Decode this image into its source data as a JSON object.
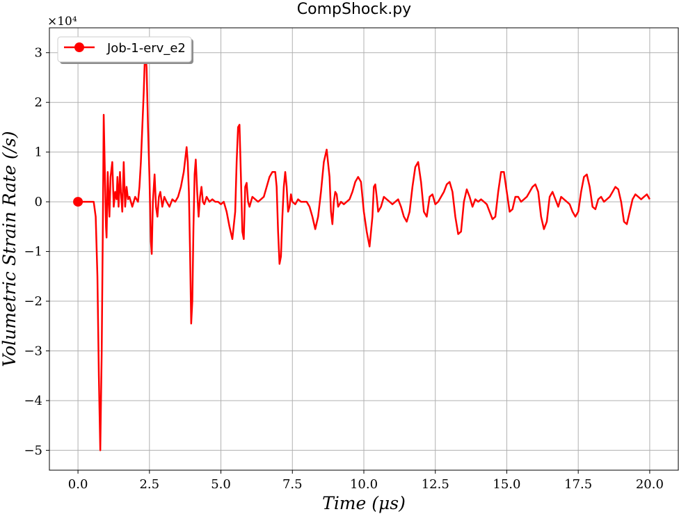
{
  "chart_data": {
    "type": "line",
    "title": "CompShock.py",
    "xlabel": "Time (μs)",
    "ylabel": "Volumetric Strain Rate (/s)",
    "y_multiplier_label": "×10⁴",
    "xlim": [
      -1.0,
      21.0
    ],
    "ylim": [
      -5.4,
      3.5
    ],
    "xticks": [
      0.0,
      2.5,
      5.0,
      7.5,
      10.0,
      12.5,
      15.0,
      17.5,
      20.0
    ],
    "xtick_labels": [
      "0.0",
      "2.5",
      "5.0",
      "7.5",
      "10.0",
      "12.5",
      "15.0",
      "17.5",
      "20.0"
    ],
    "yticks": [
      -5,
      -4,
      -3,
      -2,
      -1,
      0,
      1,
      2,
      3
    ],
    "ytick_labels": [
      "−5",
      "−4",
      "−3",
      "−2",
      "−1",
      "0",
      "1",
      "2",
      "3"
    ],
    "grid": true,
    "legend": {
      "position": "upper-left"
    },
    "series": [
      {
        "name": "Job-1-erv_e2",
        "color": "#ff0000",
        "marker_at_start": true,
        "points": [
          [
            0.0,
            0
          ],
          [
            0.3,
            0
          ],
          [
            0.55,
            0
          ],
          [
            0.62,
            -0.3
          ],
          [
            0.68,
            -1.5
          ],
          [
            0.73,
            -3.5
          ],
          [
            0.78,
            -5.0
          ],
          [
            0.83,
            -3.0
          ],
          [
            0.87,
            -0.5
          ],
          [
            0.9,
            1.75
          ],
          [
            0.94,
            0.6
          ],
          [
            0.98,
            -0.5
          ],
          [
            1.0,
            -0.72
          ],
          [
            1.04,
            0.6
          ],
          [
            1.07,
            0.1
          ],
          [
            1.1,
            -0.3
          ],
          [
            1.14,
            0.5
          ],
          [
            1.2,
            0.8
          ],
          [
            1.25,
            -0.1
          ],
          [
            1.3,
            0.2
          ],
          [
            1.35,
            0.05
          ],
          [
            1.38,
            0.5
          ],
          [
            1.42,
            -0.1
          ],
          [
            1.47,
            0.6
          ],
          [
            1.5,
            0.2
          ],
          [
            1.55,
            -0.2
          ],
          [
            1.6,
            0.8
          ],
          [
            1.65,
            -0.1
          ],
          [
            1.7,
            0.3
          ],
          [
            1.75,
            0.05
          ],
          [
            1.8,
            0.1
          ],
          [
            1.9,
            -0.1
          ],
          [
            2.0,
            0.1
          ],
          [
            2.1,
            0.0
          ],
          [
            2.15,
            0.3
          ],
          [
            2.2,
            0.8
          ],
          [
            2.25,
            1.5
          ],
          [
            2.3,
            2.2
          ],
          [
            2.35,
            3.1
          ],
          [
            2.4,
            2.7
          ],
          [
            2.45,
            1.5
          ],
          [
            2.5,
            0.5
          ],
          [
            2.55,
            -0.8
          ],
          [
            2.58,
            -1.05
          ],
          [
            2.62,
            0.0
          ],
          [
            2.68,
            0.55
          ],
          [
            2.73,
            -0.1
          ],
          [
            2.78,
            -0.3
          ],
          [
            2.83,
            0.1
          ],
          [
            2.88,
            0.2
          ],
          [
            2.95,
            -0.1
          ],
          [
            3.02,
            0.1
          ],
          [
            3.1,
            0.0
          ],
          [
            3.2,
            -0.1
          ],
          [
            3.3,
            0.05
          ],
          [
            3.4,
            0.0
          ],
          [
            3.5,
            0.1
          ],
          [
            3.6,
            0.3
          ],
          [
            3.7,
            0.6
          ],
          [
            3.8,
            1.1
          ],
          [
            3.84,
            0.8
          ],
          [
            3.88,
            0.2
          ],
          [
            3.92,
            -1.0
          ],
          [
            3.96,
            -2.45
          ],
          [
            4.0,
            -2.0
          ],
          [
            4.04,
            -0.5
          ],
          [
            4.08,
            0.55
          ],
          [
            4.12,
            0.85
          ],
          [
            4.17,
            0.2
          ],
          [
            4.22,
            -0.3
          ],
          [
            4.27,
            0.1
          ],
          [
            4.32,
            0.3
          ],
          [
            4.37,
            0.0
          ],
          [
            4.42,
            -0.05
          ],
          [
            4.5,
            0.1
          ],
          [
            4.6,
            0.0
          ],
          [
            4.7,
            0.05
          ],
          [
            4.8,
            0.0
          ],
          [
            4.9,
            0.0
          ],
          [
            5.0,
            -0.05
          ],
          [
            5.1,
            0.0
          ],
          [
            5.2,
            -0.2
          ],
          [
            5.3,
            -0.5
          ],
          [
            5.4,
            -0.75
          ],
          [
            5.5,
            -0.2
          ],
          [
            5.55,
            0.8
          ],
          [
            5.6,
            1.5
          ],
          [
            5.65,
            1.55
          ],
          [
            5.7,
            0.5
          ],
          [
            5.75,
            -0.6
          ],
          [
            5.8,
            -0.75
          ],
          [
            5.85,
            0.3
          ],
          [
            5.9,
            0.38
          ],
          [
            5.95,
            0.0
          ],
          [
            6.0,
            -0.1
          ],
          [
            6.1,
            0.1
          ],
          [
            6.2,
            0.05
          ],
          [
            6.3,
            0.0
          ],
          [
            6.4,
            0.05
          ],
          [
            6.5,
            0.1
          ],
          [
            6.6,
            0.3
          ],
          [
            6.7,
            0.5
          ],
          [
            6.8,
            0.6
          ],
          [
            6.9,
            0.6
          ],
          [
            6.95,
            0.3
          ],
          [
            7.0,
            -0.6
          ],
          [
            7.05,
            -1.25
          ],
          [
            7.1,
            -1.1
          ],
          [
            7.15,
            -0.3
          ],
          [
            7.2,
            0.3
          ],
          [
            7.25,
            0.6
          ],
          [
            7.3,
            0.3
          ],
          [
            7.35,
            -0.2
          ],
          [
            7.4,
            -0.1
          ],
          [
            7.45,
            0.15
          ],
          [
            7.5,
            0.0
          ],
          [
            7.6,
            -0.05
          ],
          [
            7.7,
            0.05
          ],
          [
            7.8,
            0.0
          ],
          [
            7.9,
            0.0
          ],
          [
            8.0,
            0.0
          ],
          [
            8.1,
            -0.1
          ],
          [
            8.2,
            -0.3
          ],
          [
            8.3,
            -0.55
          ],
          [
            8.4,
            -0.3
          ],
          [
            8.5,
            0.2
          ],
          [
            8.6,
            0.8
          ],
          [
            8.7,
            1.05
          ],
          [
            8.8,
            0.5
          ],
          [
            8.85,
            -0.2
          ],
          [
            8.9,
            -0.45
          ],
          [
            8.95,
            0.0
          ],
          [
            9.0,
            0.2
          ],
          [
            9.05,
            0.15
          ],
          [
            9.1,
            -0.1
          ],
          [
            9.2,
            0.0
          ],
          [
            9.3,
            -0.05
          ],
          [
            9.4,
            0.0
          ],
          [
            9.5,
            0.05
          ],
          [
            9.6,
            0.2
          ],
          [
            9.7,
            0.4
          ],
          [
            9.8,
            0.5
          ],
          [
            9.9,
            0.4
          ],
          [
            10.0,
            -0.2
          ],
          [
            10.1,
            -0.6
          ],
          [
            10.2,
            -0.9
          ],
          [
            10.3,
            -0.3
          ],
          [
            10.35,
            0.3
          ],
          [
            10.4,
            0.35
          ],
          [
            10.45,
            0.1
          ],
          [
            10.5,
            -0.2
          ],
          [
            10.6,
            -0.1
          ],
          [
            10.7,
            0.1
          ],
          [
            10.8,
            0.05
          ],
          [
            10.9,
            0.0
          ],
          [
            11.0,
            -0.05
          ],
          [
            11.1,
            0.0
          ],
          [
            11.2,
            0.05
          ],
          [
            11.3,
            -0.1
          ],
          [
            11.4,
            -0.3
          ],
          [
            11.5,
            -0.4
          ],
          [
            11.6,
            -0.2
          ],
          [
            11.7,
            0.3
          ],
          [
            11.8,
            0.7
          ],
          [
            11.9,
            0.8
          ],
          [
            12.0,
            0.4
          ],
          [
            12.1,
            -0.2
          ],
          [
            12.2,
            -0.3
          ],
          [
            12.3,
            0.1
          ],
          [
            12.4,
            0.15
          ],
          [
            12.5,
            -0.05
          ],
          [
            12.6,
            0.0
          ],
          [
            12.7,
            0.1
          ],
          [
            12.8,
            0.2
          ],
          [
            12.9,
            0.35
          ],
          [
            13.0,
            0.4
          ],
          [
            13.1,
            0.2
          ],
          [
            13.2,
            -0.3
          ],
          [
            13.3,
            -0.65
          ],
          [
            13.4,
            -0.6
          ],
          [
            13.5,
            0.0
          ],
          [
            13.6,
            0.25
          ],
          [
            13.7,
            0.1
          ],
          [
            13.8,
            -0.1
          ],
          [
            13.9,
            0.05
          ],
          [
            14.0,
            0.0
          ],
          [
            14.1,
            0.05
          ],
          [
            14.2,
            0.0
          ],
          [
            14.3,
            -0.05
          ],
          [
            14.4,
            -0.2
          ],
          [
            14.5,
            -0.35
          ],
          [
            14.6,
            -0.3
          ],
          [
            14.7,
            0.2
          ],
          [
            14.8,
            0.6
          ],
          [
            14.9,
            0.6
          ],
          [
            15.0,
            0.2
          ],
          [
            15.1,
            -0.2
          ],
          [
            15.2,
            -0.15
          ],
          [
            15.3,
            0.1
          ],
          [
            15.4,
            0.1
          ],
          [
            15.5,
            0.0
          ],
          [
            15.6,
            0.05
          ],
          [
            15.7,
            0.1
          ],
          [
            15.8,
            0.2
          ],
          [
            15.9,
            0.3
          ],
          [
            16.0,
            0.35
          ],
          [
            16.1,
            0.2
          ],
          [
            16.2,
            -0.3
          ],
          [
            16.3,
            -0.55
          ],
          [
            16.4,
            -0.4
          ],
          [
            16.5,
            0.1
          ],
          [
            16.6,
            0.2
          ],
          [
            16.7,
            0.05
          ],
          [
            16.8,
            -0.1
          ],
          [
            16.9,
            0.1
          ],
          [
            17.0,
            0.05
          ],
          [
            17.1,
            0.0
          ],
          [
            17.2,
            -0.05
          ],
          [
            17.3,
            -0.2
          ],
          [
            17.4,
            -0.3
          ],
          [
            17.5,
            -0.2
          ],
          [
            17.6,
            0.2
          ],
          [
            17.7,
            0.5
          ],
          [
            17.8,
            0.55
          ],
          [
            17.9,
            0.3
          ],
          [
            18.0,
            -0.1
          ],
          [
            18.1,
            -0.15
          ],
          [
            18.2,
            0.05
          ],
          [
            18.3,
            0.1
          ],
          [
            18.4,
            0.0
          ],
          [
            18.5,
            0.05
          ],
          [
            18.6,
            0.1
          ],
          [
            18.7,
            0.2
          ],
          [
            18.8,
            0.3
          ],
          [
            18.9,
            0.25
          ],
          [
            19.0,
            0.0
          ],
          [
            19.1,
            -0.4
          ],
          [
            19.2,
            -0.45
          ],
          [
            19.3,
            -0.2
          ],
          [
            19.4,
            0.05
          ],
          [
            19.5,
            0.15
          ],
          [
            19.6,
            0.1
          ],
          [
            19.7,
            0.05
          ],
          [
            19.8,
            0.1
          ],
          [
            19.9,
            0.15
          ],
          [
            20.0,
            0.05
          ]
        ]
      }
    ]
  }
}
